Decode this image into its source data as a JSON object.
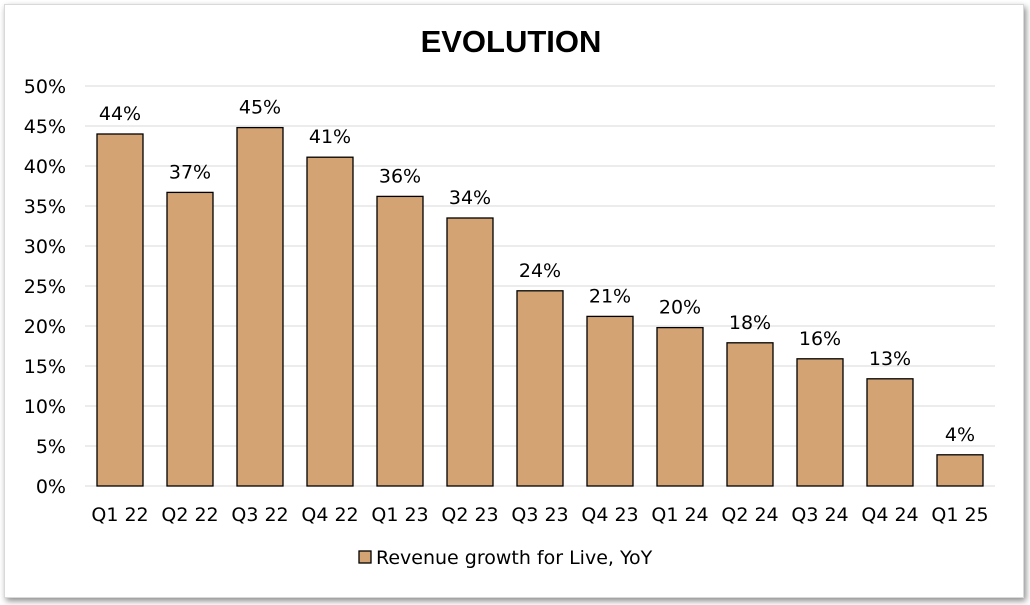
{
  "chart_data": {
    "type": "bar",
    "title": "EVOLUTION",
    "categories": [
      "Q1 22",
      "Q2 22",
      "Q3 22",
      "Q4 22",
      "Q1 23",
      "Q2 23",
      "Q3 23",
      "Q4 23",
      "Q1 24",
      "Q2 24",
      "Q3 24",
      "Q4 24",
      "Q1 25"
    ],
    "series": [
      {
        "name": "Revenue growth for Live, YoY",
        "values": [
          44,
          36.7,
          44.8,
          41.1,
          36.2,
          33.5,
          24.4,
          21.2,
          19.8,
          17.9,
          15.9,
          13.4,
          3.9
        ],
        "labels": [
          "44%",
          "37%",
          "45%",
          "41%",
          "36%",
          "34%",
          "24%",
          "21%",
          "20%",
          "18%",
          "16%",
          "13%",
          "4%"
        ]
      }
    ],
    "ylim": [
      0,
      50
    ],
    "yticks": [
      "0%",
      "5%",
      "10%",
      "15%",
      "20%",
      "25%",
      "30%",
      "35%",
      "40%",
      "45%",
      "50%"
    ],
    "ytick_values": [
      0,
      5,
      10,
      15,
      20,
      25,
      30,
      35,
      40,
      45,
      50
    ],
    "grid": true,
    "legend_position": "bottom-center",
    "bar_color": "#d4a373",
    "bar_outline_color": "#000000",
    "grid_color": "#d9d9d9"
  }
}
